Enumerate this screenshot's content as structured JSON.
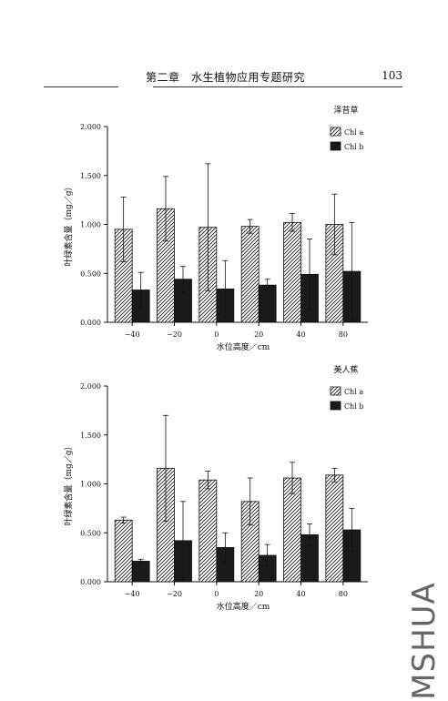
{
  "page": {
    "chapter_title": "第二章　水生植物应用专题研究",
    "page_number": "103",
    "watermark": "MSHUA"
  },
  "chart_data": [
    {
      "type": "bar",
      "title": "泽苔草",
      "categories": [
        "−40",
        "−20",
        "0",
        "20",
        "40",
        "80"
      ],
      "series": [
        {
          "name": "Chl a",
          "values": [
            0.95,
            1.16,
            0.97,
            0.98,
            1.02,
            1.0
          ],
          "errors": [
            0.33,
            0.33,
            0.65,
            0.07,
            0.09,
            0.31
          ],
          "pattern": "hatch"
        },
        {
          "name": "Chl b",
          "values": [
            0.33,
            0.44,
            0.34,
            0.38,
            0.49,
            0.52
          ],
          "errors": [
            0.18,
            0.13,
            0.29,
            0.06,
            0.36,
            0.5
          ],
          "pattern": "solid"
        }
      ],
      "xlabel": "水位高度／cm",
      "ylabel": "叶绿素含量（mg／g）",
      "ylim": [
        0,
        2.0
      ],
      "yticks": [
        "0.000",
        "0.500",
        "1.000",
        "1.500",
        "2.000"
      ],
      "legend_position": "top-right"
    },
    {
      "type": "bar",
      "title": "美人蕉",
      "categories": [
        "−40",
        "−20",
        "0",
        "20",
        "40",
        "80"
      ],
      "series": [
        {
          "name": "Chl a",
          "values": [
            0.63,
            1.16,
            1.04,
            0.82,
            1.06,
            1.09
          ],
          "errors": [
            0.03,
            0.54,
            0.09,
            0.24,
            0.16,
            0.07
          ],
          "pattern": "hatch"
        },
        {
          "name": "Chl b",
          "values": [
            0.21,
            0.42,
            0.35,
            0.27,
            0.48,
            0.53
          ],
          "errors": [
            0.02,
            0.4,
            0.15,
            0.11,
            0.11,
            0.22
          ],
          "pattern": "solid"
        }
      ],
      "xlabel": "水位高度／cm",
      "ylabel": "叶绿素含量（mg／g）",
      "ylim": [
        0,
        2.0
      ],
      "yticks": [
        "0.000",
        "0.500",
        "1.000",
        "1.500",
        "2.000"
      ],
      "legend_position": "top-right"
    }
  ],
  "colors": {
    "ink": "#111111",
    "hatch": "#222222",
    "background": "#ffffff"
  }
}
